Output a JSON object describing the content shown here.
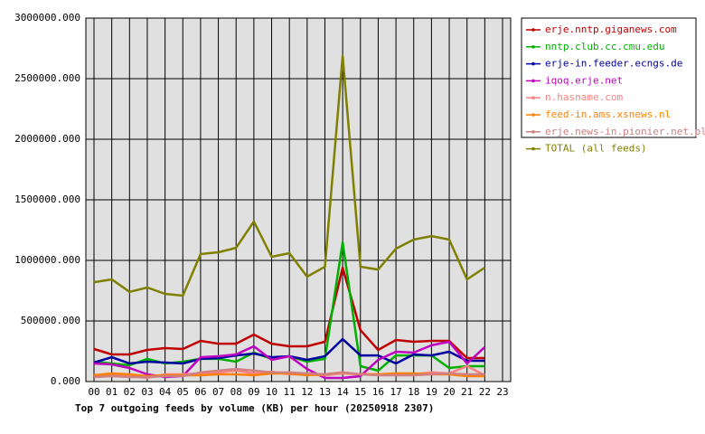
{
  "chart_data": {
    "type": "line",
    "title": "Top 7 outgoing feeds by volume (KB) per hour (20250918 2307)",
    "categories": [
      "00",
      "01",
      "02",
      "03",
      "04",
      "05",
      "06",
      "07",
      "08",
      "09",
      "10",
      "11",
      "12",
      "13",
      "14",
      "15",
      "16",
      "17",
      "18",
      "19",
      "20",
      "21",
      "22",
      "23"
    ],
    "ylim": [
      0,
      3000000
    ],
    "yticks": [
      {
        "value": 0,
        "label": "0.000"
      },
      {
        "value": 500000,
        "label": "500000.000"
      },
      {
        "value": 1000000,
        "label": "1000000.000"
      },
      {
        "value": 1500000,
        "label": "1500000.000"
      },
      {
        "value": 2000000,
        "label": "2000000.000"
      },
      {
        "value": 2500000,
        "label": "2500000.000"
      },
      {
        "value": 3000000,
        "label": "3000000.000"
      }
    ],
    "grid": true,
    "legend": "right",
    "series": [
      {
        "name": "erje.nntp.giganews.com",
        "color": "#c00000",
        "values": [
          269000,
          224000,
          224000,
          261000,
          276000,
          269000,
          336000,
          313000,
          313000,
          388000,
          313000,
          291000,
          291000,
          328000,
          940000,
          425000,
          261000,
          343000,
          328000,
          336000,
          336000,
          194000,
          194000,
          null
        ]
      },
      {
        "name": "nntp.club.cc.cmu.edu",
        "color": "#00b000",
        "values": [
          164000,
          149000,
          134000,
          187000,
          149000,
          164000,
          187000,
          187000,
          164000,
          239000,
          187000,
          209000,
          164000,
          187000,
          1149000,
          127000,
          90000,
          216000,
          216000,
          216000,
          112000,
          127000,
          127000,
          null
        ]
      },
      {
        "name": "erje-in.feeder.ecngs.de",
        "color": "#0000a0",
        "values": [
          157000,
          201000,
          149000,
          164000,
          157000,
          149000,
          187000,
          194000,
          216000,
          231000,
          201000,
          209000,
          179000,
          209000,
          351000,
          216000,
          216000,
          149000,
          224000,
          216000,
          246000,
          172000,
          172000,
          null
        ]
      },
      {
        "name": "iqoq.erje.net",
        "color": "#c000c0",
        "values": [
          149000,
          142000,
          112000,
          60000,
          37000,
          45000,
          201000,
          209000,
          224000,
          291000,
          179000,
          209000,
          104000,
          30000,
          30000,
          45000,
          179000,
          246000,
          239000,
          299000,
          328000,
          149000,
          284000,
          null
        ]
      },
      {
        "name": "n.hasname.com",
        "color": "#ff8080",
        "values": [
          45000,
          60000,
          45000,
          30000,
          60000,
          60000,
          67000,
          75000,
          90000,
          67000,
          82000,
          60000,
          60000,
          52000,
          67000,
          60000,
          60000,
          60000,
          60000,
          75000,
          67000,
          127000,
          52000,
          null
        ]
      },
      {
        "name": "feed-in.ams.xsnews.nl",
        "color": "#ff8000",
        "values": [
          52000,
          67000,
          60000,
          45000,
          52000,
          52000,
          52000,
          60000,
          60000,
          52000,
          67000,
          67000,
          52000,
          60000,
          75000,
          60000,
          60000,
          67000,
          67000,
          60000,
          60000,
          45000,
          45000,
          null
        ]
      },
      {
        "name": "erje.news-in.pionier.net.pl",
        "color": "#d08080",
        "values": [
          37000,
          45000,
          37000,
          37000,
          45000,
          45000,
          75000,
          90000,
          104000,
          90000,
          75000,
          75000,
          67000,
          60000,
          75000,
          60000,
          52000,
          52000,
          52000,
          60000,
          67000,
          60000,
          60000,
          null
        ]
      },
      {
        "name": "TOTAL (all feeds)",
        "color": "#808000",
        "values": [
          820000,
          843000,
          740000,
          776000,
          724000,
          709000,
          1052000,
          1067000,
          1104000,
          1321000,
          1030000,
          1060000,
          866000,
          948000,
          2687000,
          948000,
          925000,
          1097000,
          1172000,
          1201000,
          1172000,
          843000,
          940000,
          null
        ]
      }
    ]
  }
}
